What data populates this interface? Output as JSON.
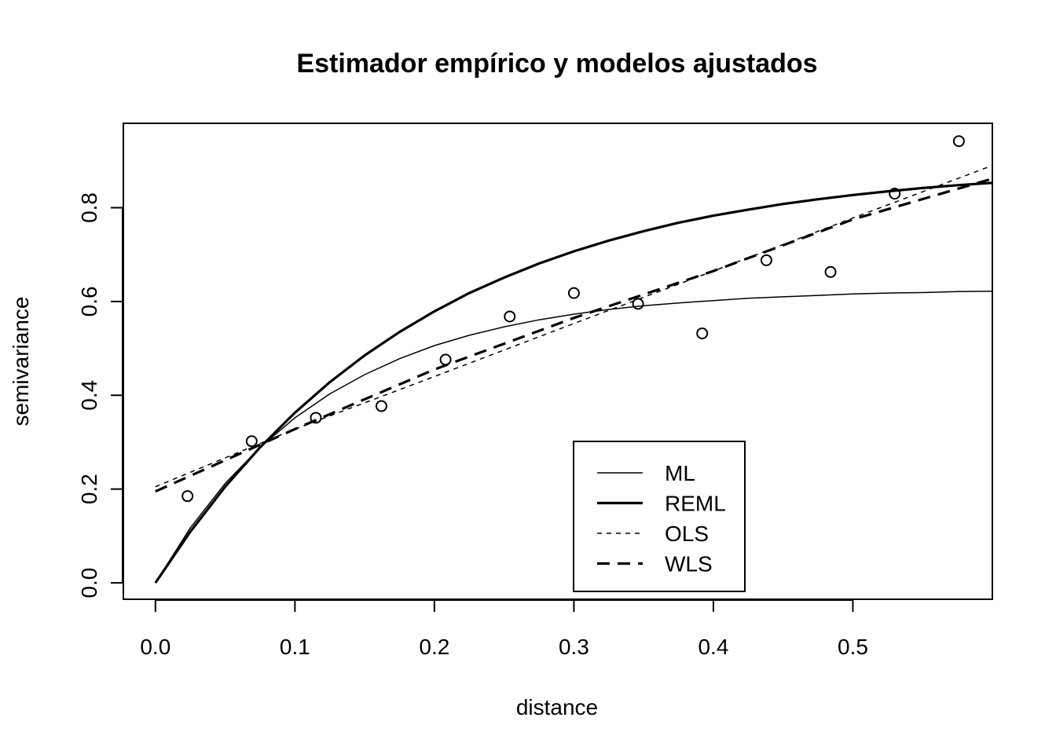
{
  "chart_data": {
    "type": "scatter",
    "title": "Estimador empírico y modelos ajustados",
    "xlabel": "distance",
    "ylabel": "semivariance",
    "xlim": [
      -0.023,
      0.6
    ],
    "ylim": [
      -0.035,
      0.98
    ],
    "x_ticks": [
      "0.0",
      "0.1",
      "0.2",
      "0.3",
      "0.4",
      "0.5"
    ],
    "y_ticks": [
      "0.0",
      "0.2",
      "0.4",
      "0.6",
      "0.8"
    ],
    "grid": false,
    "legend_position": "bottom-center",
    "points": {
      "x": [
        0.023,
        0.069,
        0.115,
        0.162,
        0.208,
        0.254,
        0.3,
        0.346,
        0.392,
        0.438,
        0.484,
        0.53,
        0.576
      ],
      "y": [
        0.185,
        0.302,
        0.352,
        0.377,
        0.476,
        0.568,
        0.618,
        0.595,
        0.532,
        0.688,
        0.663,
        0.83,
        0.942
      ]
    },
    "series": [
      {
        "name": "ML",
        "style": "thin-solid",
        "x": [
          0.0,
          0.025,
          0.05,
          0.075,
          0.1,
          0.125,
          0.15,
          0.175,
          0.2,
          0.225,
          0.25,
          0.275,
          0.3,
          0.325,
          0.35,
          0.375,
          0.4,
          0.425,
          0.45,
          0.475,
          0.5,
          0.525,
          0.55,
          0.575,
          0.6
        ],
        "y": [
          0.0,
          0.117,
          0.212,
          0.289,
          0.352,
          0.403,
          0.444,
          0.478,
          0.506,
          0.528,
          0.546,
          0.561,
          0.573,
          0.583,
          0.591,
          0.597,
          0.602,
          0.607,
          0.61,
          0.613,
          0.616,
          0.618,
          0.619,
          0.621,
          0.622
        ]
      },
      {
        "name": "REML",
        "style": "thick-solid",
        "x": [
          0.0,
          0.025,
          0.05,
          0.075,
          0.1,
          0.125,
          0.15,
          0.175,
          0.2,
          0.225,
          0.25,
          0.275,
          0.3,
          0.325,
          0.35,
          0.375,
          0.4,
          0.425,
          0.45,
          0.475,
          0.5,
          0.525,
          0.55,
          0.575,
          0.6
        ],
        "y": [
          0.0,
          0.109,
          0.205,
          0.289,
          0.363,
          0.428,
          0.485,
          0.535,
          0.579,
          0.618,
          0.651,
          0.681,
          0.707,
          0.73,
          0.75,
          0.768,
          0.783,
          0.796,
          0.808,
          0.818,
          0.827,
          0.835,
          0.842,
          0.848,
          0.853
        ]
      },
      {
        "name": "OLS",
        "style": "thin-dotted",
        "x": [
          0.0,
          0.1,
          0.2,
          0.3,
          0.4,
          0.5,
          0.6
        ],
        "y": [
          0.205,
          0.328,
          0.44,
          0.553,
          0.665,
          0.778,
          0.89
        ]
      },
      {
        "name": "WLS",
        "style": "thick-dashed",
        "x": [
          0.0,
          0.1,
          0.2,
          0.3,
          0.4,
          0.5,
          0.6
        ],
        "y": [
          0.195,
          0.328,
          0.455,
          0.565,
          0.665,
          0.775,
          0.862
        ]
      }
    ]
  }
}
